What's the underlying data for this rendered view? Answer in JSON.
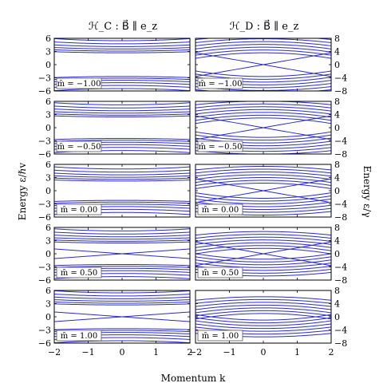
{
  "titles": {
    "left": "ℋ_C : B⃗ ∥ e_z",
    "right": "ℋ_D : B⃗ ∥ e_z"
  },
  "axes": {
    "xlabel": "Momentum k",
    "ylabel_left": "Energy ε/ℏv",
    "ylabel_right": "Energy ε/γ",
    "x_ticks": [
      "−2",
      "−1",
      "0",
      "1",
      "2"
    ],
    "y_ticks_left": [
      "6",
      "3",
      "0",
      "−3",
      "−6"
    ],
    "y_ticks_right": [
      "8",
      "4",
      "0",
      "−4",
      "−8"
    ]
  },
  "colors": {
    "line": "#2a2ad0",
    "axis": "#000000"
  },
  "chart_data": [
    {
      "type": "line",
      "model": "H_C",
      "column": "left",
      "xlim": [
        -2,
        2
      ],
      "ylim": [
        -6,
        6
      ],
      "panels": [
        {
          "label": "m̄ = −1.00",
          "m": -1.0
        },
        {
          "label": "m̄ = −0.50",
          "m": -0.5
        },
        {
          "label": "m̄ = 0.00",
          "m": 0.0
        },
        {
          "label": "m̄ = 0.50",
          "m": 0.5
        },
        {
          "label": "m̄ = 1.00",
          "m": 1.0
        }
      ]
    },
    {
      "type": "line",
      "model": "H_D",
      "column": "right",
      "xlim": [
        -2,
        2
      ],
      "ylim": [
        -8,
        8
      ],
      "panels": [
        {
          "label": "m̄ = −1.00",
          "m": -1.0
        },
        {
          "label": "m̄ = −0.50",
          "m": -0.5
        },
        {
          "label": "m̄ = 0.00",
          "m": 0.0
        },
        {
          "label": "m̄ = 0.50",
          "m": 0.5
        },
        {
          "label": "m̄ = 1.00",
          "m": 1.0
        }
      ]
    }
  ]
}
